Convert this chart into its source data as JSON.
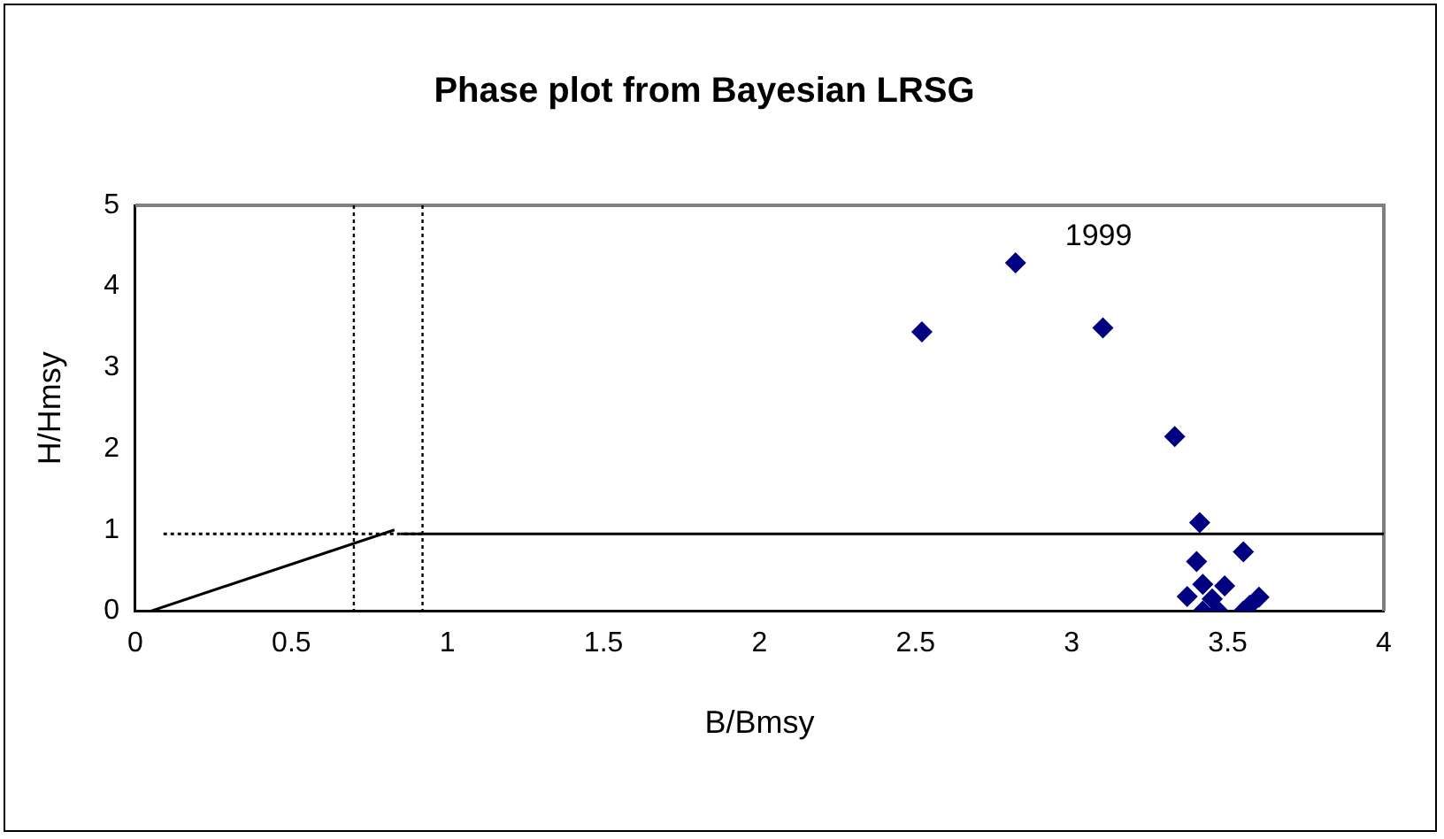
{
  "chart_data": {
    "type": "scatter",
    "title": "Phase plot from Bayesian LRSG",
    "xlabel": "B/Bmsy",
    "ylabel": "H/Hmsy",
    "xlim": [
      0,
      4
    ],
    "ylim": [
      0,
      5
    ],
    "xticks": [
      0,
      0.5,
      1,
      1.5,
      2,
      2.5,
      3,
      3.5,
      4
    ],
    "yticks": [
      0,
      1,
      2,
      3,
      4,
      5
    ],
    "grid": false,
    "legend": false,
    "marker": "diamond",
    "series": [
      {
        "type": "scatter",
        "color": "#000080",
        "x": [
          2.52,
          2.82,
          3.1,
          3.33,
          3.41,
          3.55,
          3.4,
          3.37,
          3.42,
          3.49,
          3.45,
          3.42,
          3.47,
          3.55,
          3.6,
          3.57
        ],
        "values": [
          3.44,
          4.29,
          3.49,
          2.15,
          1.09,
          0.73,
          0.61,
          0.18,
          0.33,
          0.31,
          0.15,
          0.0,
          0.0,
          0.0,
          0.17,
          0.07
        ]
      },
      {
        "type": "line",
        "color": "#000000",
        "line_style": "solid",
        "marker": "none",
        "x": [
          0.05,
          0.83
        ],
        "values": [
          0,
          1.0
        ]
      },
      {
        "type": "line",
        "color": "#000000",
        "line_style": "solid",
        "marker": "none",
        "x": [
          0.85,
          4
        ],
        "values": [
          0.95,
          0.95
        ]
      },
      {
        "type": "line",
        "color": "#000000",
        "line_style": "dotted",
        "marker": "none",
        "x": [
          0.09,
          0.92
        ],
        "values": [
          0.95,
          0.95
        ]
      }
    ],
    "ref_lines": [
      {
        "axis": "x",
        "value": 0.7,
        "line_style": "dotted",
        "color": "#000000"
      },
      {
        "axis": "x",
        "value": 0.92,
        "line_style": "dotted",
        "color": "#000000"
      }
    ],
    "annotations": [
      {
        "text": "1999",
        "x": 2.82,
        "y": 4.29
      }
    ]
  }
}
